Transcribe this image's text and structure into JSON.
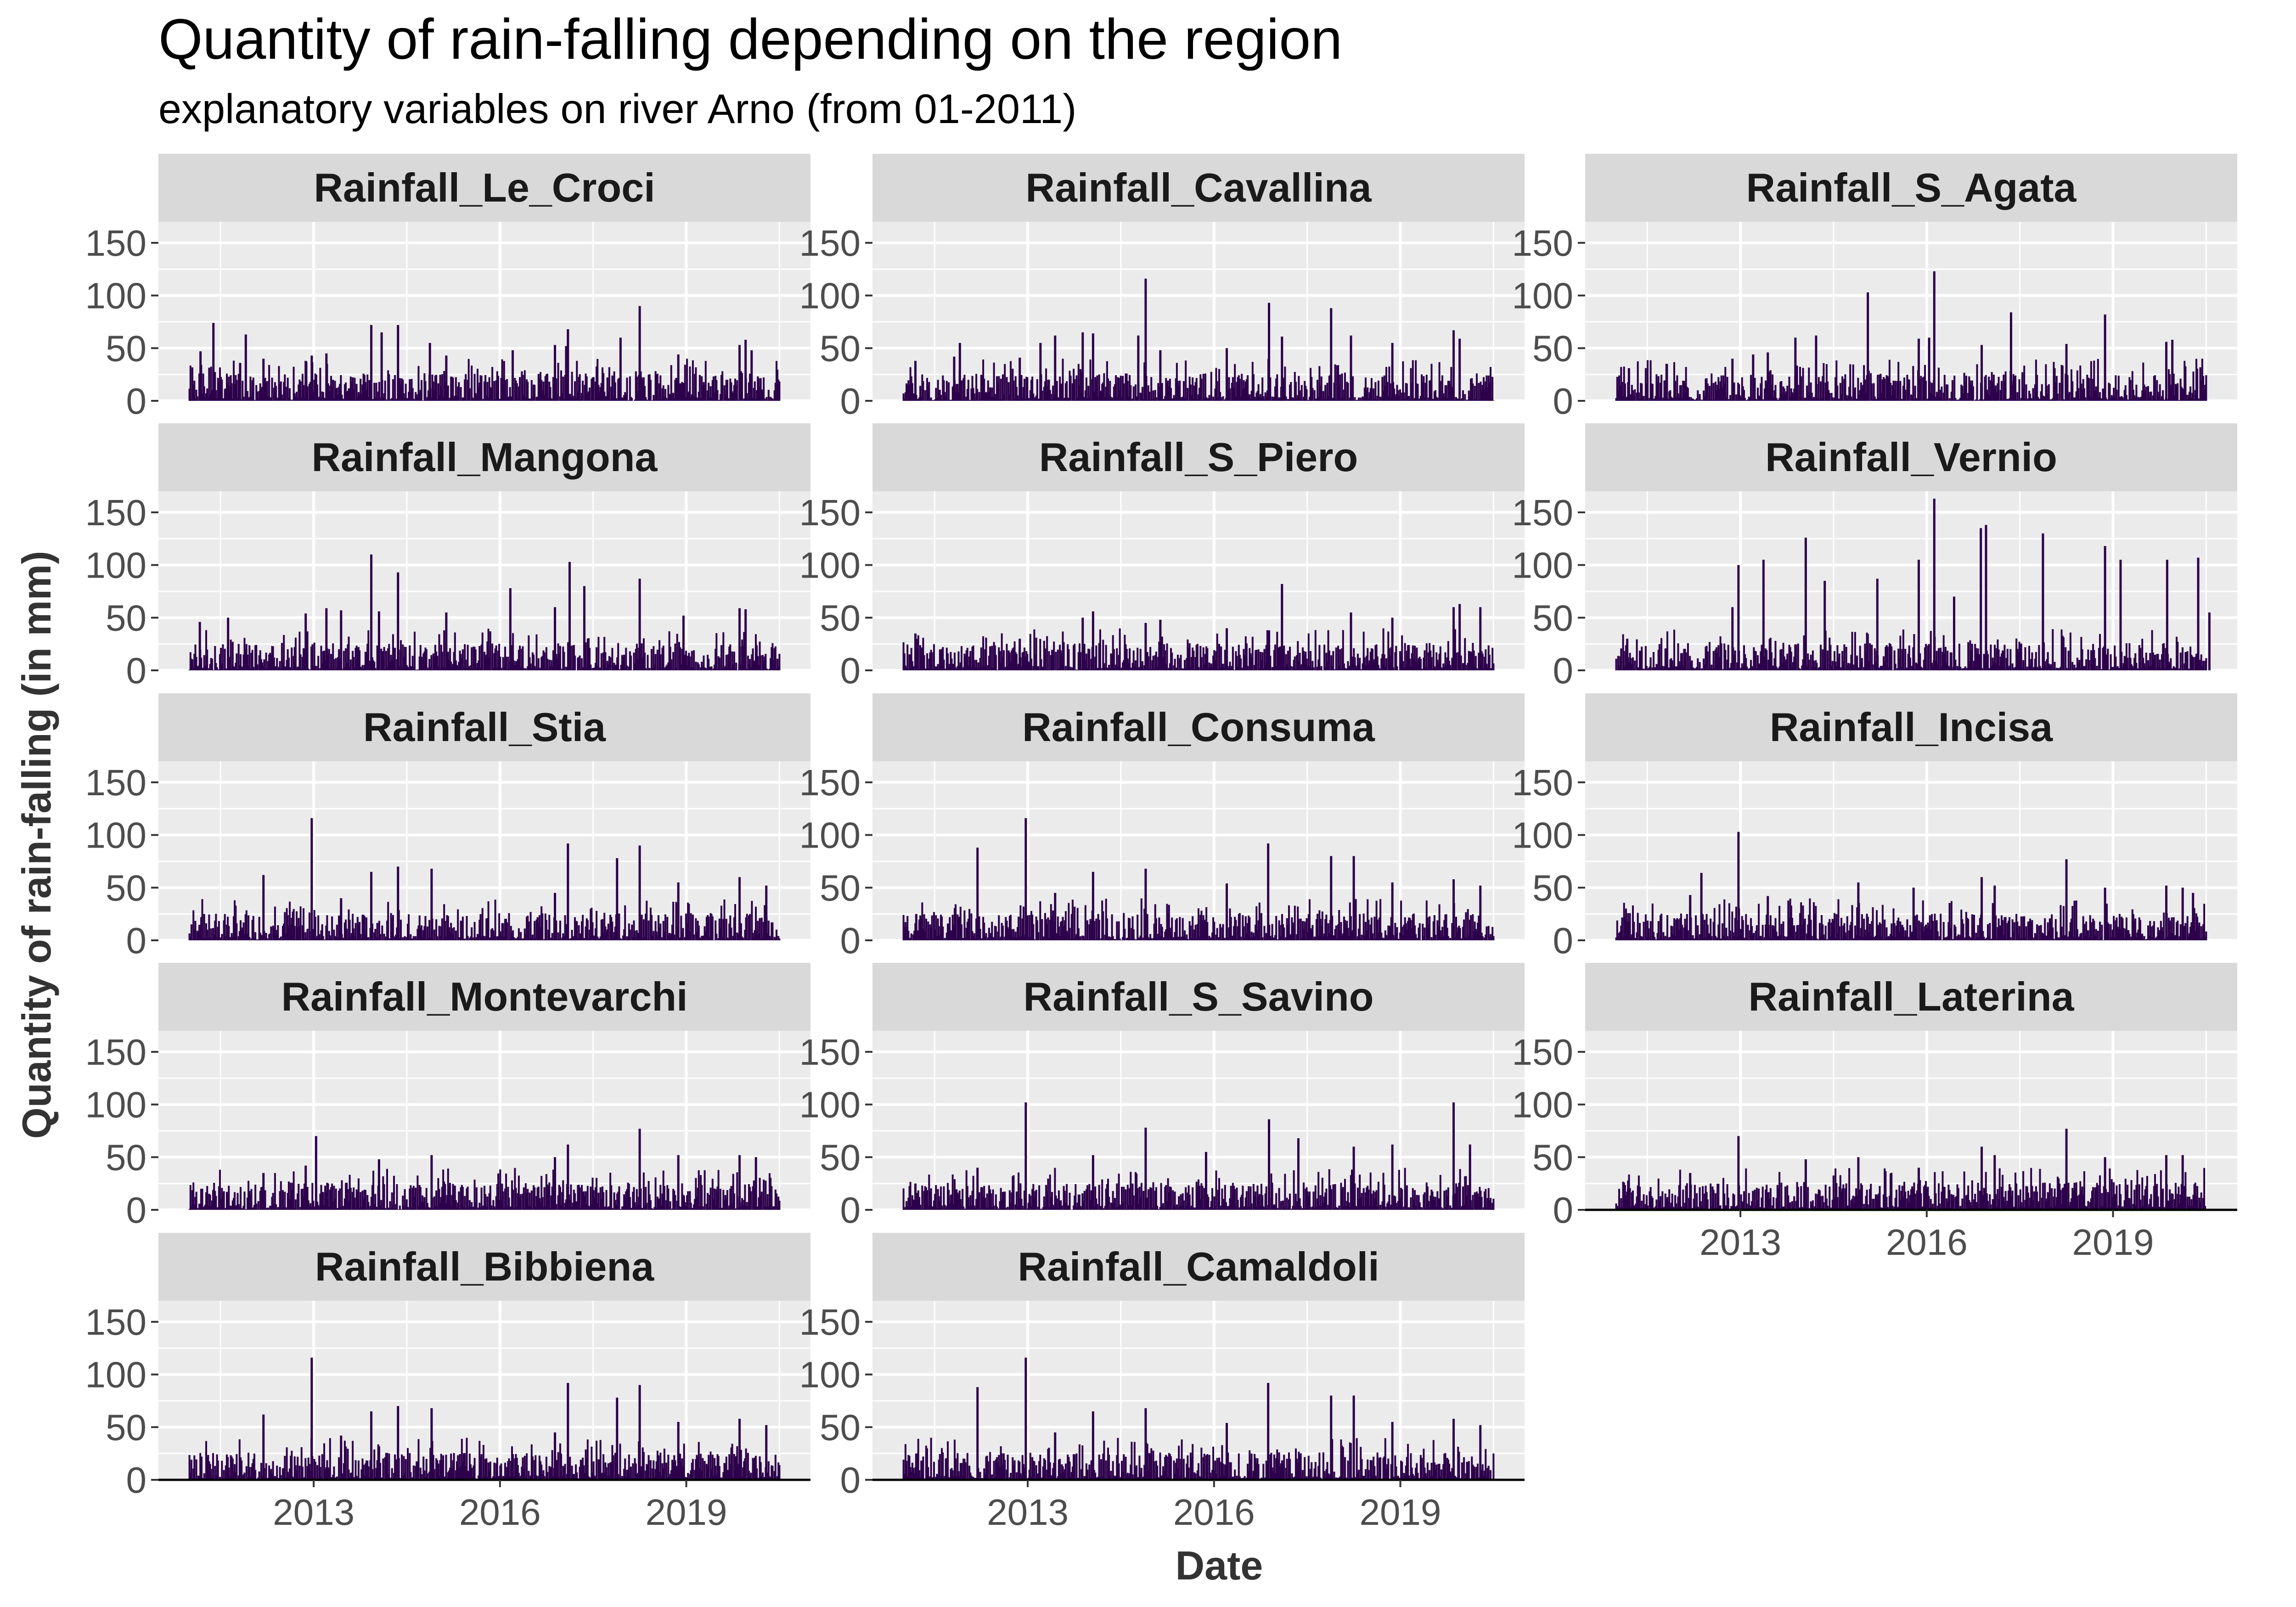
{
  "chart_data": {
    "type": "bar",
    "layout": "facet_wrap",
    "title": "Quantity of rain-falling depending on the region",
    "subtitle": "explanatory variables on river Arno (from 01-2011)",
    "xlabel": "Date",
    "ylabel": "Quantity of rain-falling (in mm)",
    "x_ticks": [
      "2013",
      "2016",
      "2019"
    ],
    "y_ticks": [
      0,
      50,
      100,
      150
    ],
    "xlim": [
      "2011-01-01",
      "2020-07-01"
    ],
    "ylim": [
      0,
      170
    ],
    "grid": true,
    "bar_color": "#2d004b",
    "panel_background": "#ebebeb",
    "strip_background": "#d9d9d9",
    "series": [
      {
        "name": "Rainfall_Le_Croci",
        "values": [
          {
            "x": "2011-03-05",
            "y": 47
          },
          {
            "x": "2011-05-20",
            "y": 74
          },
          {
            "x": "2011-10-25",
            "y": 36
          },
          {
            "x": "2011-11-28",
            "y": 63
          },
          {
            "x": "2012-03-10",
            "y": 40
          },
          {
            "x": "2012-11-15",
            "y": 38
          },
          {
            "x": "2012-12-20",
            "y": 43
          },
          {
            "x": "2013-03-15",
            "y": 45
          },
          {
            "x": "2013-12-05",
            "y": 72
          },
          {
            "x": "2014-02-05",
            "y": 65
          },
          {
            "x": "2014-05-10",
            "y": 72
          },
          {
            "x": "2014-11-15",
            "y": 55
          },
          {
            "x": "2015-02-20",
            "y": 43
          },
          {
            "x": "2016-03-15",
            "y": 48
          },
          {
            "x": "2016-11-20",
            "y": 53
          },
          {
            "x": "2017-01-25",
            "y": 52
          },
          {
            "x": "2017-02-05",
            "y": 68
          },
          {
            "x": "2017-12-10",
            "y": 60
          },
          {
            "x": "2018-04-01",
            "y": 90
          },
          {
            "x": "2018-11-15",
            "y": 44
          },
          {
            "x": "2019-11-10",
            "y": 53
          },
          {
            "x": "2019-12-15",
            "y": 58
          },
          {
            "x": "2020-01-20",
            "y": 48
          }
        ]
      },
      {
        "name": "Rainfall_Cavallina",
        "values": [
          {
            "x": "2011-03-10",
            "y": 38
          },
          {
            "x": "2011-10-25",
            "y": 42
          },
          {
            "x": "2011-11-28",
            "y": 55
          },
          {
            "x": "2012-11-15",
            "y": 41
          },
          {
            "x": "2013-03-15",
            "y": 55
          },
          {
            "x": "2013-06-10",
            "y": 62
          },
          {
            "x": "2013-11-20",
            "y": 65
          },
          {
            "x": "2014-01-20",
            "y": 64
          },
          {
            "x": "2014-10-12",
            "y": 62
          },
          {
            "x": "2014-11-25",
            "y": 116
          },
          {
            "x": "2015-02-20",
            "y": 48
          },
          {
            "x": "2016-03-15",
            "y": 50
          },
          {
            "x": "2016-11-20",
            "y": 93
          },
          {
            "x": "2017-02-05",
            "y": 61
          },
          {
            "x": "2017-11-20",
            "y": 88
          },
          {
            "x": "2018-03-15",
            "y": 62
          },
          {
            "x": "2018-11-15",
            "y": 55
          },
          {
            "x": "2019-11-10",
            "y": 67
          },
          {
            "x": "2019-12-15",
            "y": 59
          }
        ]
      },
      {
        "name": "Rainfall_S_Agata",
        "values": [
          {
            "x": "2011-03-15",
            "y": 31
          },
          {
            "x": "2011-10-25",
            "y": 35
          },
          {
            "x": "2012-11-15",
            "y": 40
          },
          {
            "x": "2013-03-15",
            "y": 44
          },
          {
            "x": "2013-06-10",
            "y": 46
          },
          {
            "x": "2013-11-20",
            "y": 60
          },
          {
            "x": "2014-03-20",
            "y": 62
          },
          {
            "x": "2015-01-20",
            "y": 103
          },
          {
            "x": "2015-11-15",
            "y": 59
          },
          {
            "x": "2016-01-15",
            "y": 60
          },
          {
            "x": "2016-02-15",
            "y": 123
          },
          {
            "x": "2016-11-20",
            "y": 53
          },
          {
            "x": "2017-05-10",
            "y": 84
          },
          {
            "x": "2018-04-01",
            "y": 54
          },
          {
            "x": "2018-11-15",
            "y": 82
          },
          {
            "x": "2019-11-10",
            "y": 56
          },
          {
            "x": "2019-12-15",
            "y": 58
          }
        ]
      },
      {
        "name": "Rainfall_Mangona",
        "values": [
          {
            "x": "2011-03-01",
            "y": 46
          },
          {
            "x": "2011-08-15",
            "y": 50
          },
          {
            "x": "2012-11-15",
            "y": 54
          },
          {
            "x": "2013-03-15",
            "y": 59
          },
          {
            "x": "2013-06-10",
            "y": 57
          },
          {
            "x": "2013-12-05",
            "y": 110
          },
          {
            "x": "2014-01-20",
            "y": 56
          },
          {
            "x": "2014-05-10",
            "y": 93
          },
          {
            "x": "2015-02-20",
            "y": 55
          },
          {
            "x": "2016-03-01",
            "y": 78
          },
          {
            "x": "2016-11-20",
            "y": 60
          },
          {
            "x": "2017-02-15",
            "y": 103
          },
          {
            "x": "2017-05-10",
            "y": 80
          },
          {
            "x": "2018-04-01",
            "y": 87
          },
          {
            "x": "2018-12-15",
            "y": 52
          },
          {
            "x": "2019-11-10",
            "y": 59
          },
          {
            "x": "2019-12-15",
            "y": 58
          }
        ]
      },
      {
        "name": "Rainfall_S_Piero",
        "values": [
          {
            "x": "2011-03-10",
            "y": 35
          },
          {
            "x": "2012-11-15",
            "y": 30
          },
          {
            "x": "2013-11-20",
            "y": 50
          },
          {
            "x": "2014-01-20",
            "y": 56
          },
          {
            "x": "2014-11-25",
            "y": 45
          },
          {
            "x": "2015-02-20",
            "y": 48
          },
          {
            "x": "2016-03-15",
            "y": 40
          },
          {
            "x": "2016-11-20",
            "y": 38
          },
          {
            "x": "2017-02-05",
            "y": 82
          },
          {
            "x": "2018-03-15",
            "y": 55
          },
          {
            "x": "2018-11-15",
            "y": 50
          },
          {
            "x": "2019-11-10",
            "y": 60
          },
          {
            "x": "2019-12-15",
            "y": 63
          },
          {
            "x": "2020-04-15",
            "y": 60
          }
        ]
      },
      {
        "name": "Rainfall_Vernio",
        "values": [
          {
            "x": "2011-03-05",
            "y": 30
          },
          {
            "x": "2012-11-15",
            "y": 60
          },
          {
            "x": "2012-12-20",
            "y": 100
          },
          {
            "x": "2013-05-15",
            "y": 105
          },
          {
            "x": "2014-01-20",
            "y": 126
          },
          {
            "x": "2014-05-10",
            "y": 85
          },
          {
            "x": "2015-03-15",
            "y": 87
          },
          {
            "x": "2015-11-15",
            "y": 105
          },
          {
            "x": "2016-02-15",
            "y": 163
          },
          {
            "x": "2016-06-10",
            "y": 70
          },
          {
            "x": "2016-11-15",
            "y": 135
          },
          {
            "x": "2016-12-15",
            "y": 138
          },
          {
            "x": "2017-11-15",
            "y": 130
          },
          {
            "x": "2018-11-15",
            "y": 118
          },
          {
            "x": "2019-02-15",
            "y": 105
          },
          {
            "x": "2019-11-15",
            "y": 105
          },
          {
            "x": "2020-05-15",
            "y": 107
          },
          {
            "x": "2020-07-20",
            "y": 55
          }
        ]
      },
      {
        "name": "Rainfall_Stia",
        "values": [
          {
            "x": "2011-03-10",
            "y": 22
          },
          {
            "x": "2012-03-10",
            "y": 62
          },
          {
            "x": "2012-12-20",
            "y": 116
          },
          {
            "x": "2013-06-10",
            "y": 40
          },
          {
            "x": "2013-12-05",
            "y": 65
          },
          {
            "x": "2014-05-10",
            "y": 70
          },
          {
            "x": "2014-11-25",
            "y": 68
          },
          {
            "x": "2016-11-20",
            "y": 45
          },
          {
            "x": "2017-02-05",
            "y": 92
          },
          {
            "x": "2017-11-20",
            "y": 78
          },
          {
            "x": "2018-04-01",
            "y": 90
          },
          {
            "x": "2018-11-15",
            "y": 55
          },
          {
            "x": "2019-11-10",
            "y": 60
          },
          {
            "x": "2020-04-15",
            "y": 52
          }
        ]
      },
      {
        "name": "Rainfall_Consuma",
        "values": [
          {
            "x": "2011-03-15",
            "y": 25
          },
          {
            "x": "2012-03-10",
            "y": 88
          },
          {
            "x": "2012-12-20",
            "y": 116
          },
          {
            "x": "2013-06-10",
            "y": 45
          },
          {
            "x": "2014-01-20",
            "y": 65
          },
          {
            "x": "2014-11-25",
            "y": 68
          },
          {
            "x": "2016-03-15",
            "y": 54
          },
          {
            "x": "2016-11-15",
            "y": 92
          },
          {
            "x": "2017-11-20",
            "y": 80
          },
          {
            "x": "2018-04-01",
            "y": 80
          },
          {
            "x": "2018-11-15",
            "y": 55
          },
          {
            "x": "2019-11-10",
            "y": 58
          },
          {
            "x": "2020-04-15",
            "y": 52
          }
        ]
      },
      {
        "name": "Rainfall_Incisa",
        "values": [
          {
            "x": "2011-03-10",
            "y": 18
          },
          {
            "x": "2012-03-10",
            "y": 43
          },
          {
            "x": "2012-05-15",
            "y": 64
          },
          {
            "x": "2012-12-20",
            "y": 103
          },
          {
            "x": "2013-06-10",
            "y": 42
          },
          {
            "x": "2014-11-25",
            "y": 55
          },
          {
            "x": "2015-10-15",
            "y": 50
          },
          {
            "x": "2016-11-20",
            "y": 60
          },
          {
            "x": "2017-02-05",
            "y": 52
          },
          {
            "x": "2018-04-01",
            "y": 77
          },
          {
            "x": "2018-11-15",
            "y": 50
          },
          {
            "x": "2019-11-10",
            "y": 52
          },
          {
            "x": "2020-02-15",
            "y": 50
          },
          {
            "x": "2020-04-15",
            "y": 45
          }
        ]
      },
      {
        "name": "Rainfall_Montevarchi",
        "values": [
          {
            "x": "2011-03-10",
            "y": 20
          },
          {
            "x": "2012-03-10",
            "y": 35
          },
          {
            "x": "2012-11-15",
            "y": 42
          },
          {
            "x": "2013-01-15",
            "y": 70
          },
          {
            "x": "2014-01-20",
            "y": 48
          },
          {
            "x": "2014-11-25",
            "y": 52
          },
          {
            "x": "2016-11-20",
            "y": 50
          },
          {
            "x": "2017-02-05",
            "y": 62
          },
          {
            "x": "2018-04-01",
            "y": 77
          },
          {
            "x": "2018-11-15",
            "y": 52
          },
          {
            "x": "2019-11-10",
            "y": 52
          },
          {
            "x": "2020-02-15",
            "y": 50
          }
        ]
      },
      {
        "name": "Rainfall_S_Savino",
        "values": [
          {
            "x": "2011-03-10",
            "y": 25
          },
          {
            "x": "2012-03-10",
            "y": 40
          },
          {
            "x": "2012-12-20",
            "y": 102
          },
          {
            "x": "2014-01-20",
            "y": 52
          },
          {
            "x": "2014-11-25",
            "y": 78
          },
          {
            "x": "2015-11-15",
            "y": 55
          },
          {
            "x": "2016-11-20",
            "y": 86
          },
          {
            "x": "2017-05-10",
            "y": 68
          },
          {
            "x": "2018-04-01",
            "y": 60
          },
          {
            "x": "2018-11-15",
            "y": 62
          },
          {
            "x": "2019-11-10",
            "y": 102
          },
          {
            "x": "2020-02-15",
            "y": 62
          }
        ]
      },
      {
        "name": "Rainfall_Laterina",
        "values": [
          {
            "x": "2011-03-10",
            "y": 20
          },
          {
            "x": "2012-03-10",
            "y": 35
          },
          {
            "x": "2012-12-20",
            "y": 70
          },
          {
            "x": "2014-01-20",
            "y": 48
          },
          {
            "x": "2014-11-25",
            "y": 50
          },
          {
            "x": "2015-11-15",
            "y": 40
          },
          {
            "x": "2016-11-20",
            "y": 60
          },
          {
            "x": "2017-02-05",
            "y": 52
          },
          {
            "x": "2018-04-01",
            "y": 77
          },
          {
            "x": "2018-11-15",
            "y": 50
          },
          {
            "x": "2019-11-10",
            "y": 52
          },
          {
            "x": "2020-02-15",
            "y": 52
          }
        ]
      },
      {
        "name": "Rainfall_Bibbiena",
        "values": [
          {
            "x": "2011-03-10",
            "y": 22
          },
          {
            "x": "2012-03-10",
            "y": 62
          },
          {
            "x": "2012-12-20",
            "y": 116
          },
          {
            "x": "2013-06-10",
            "y": 42
          },
          {
            "x": "2013-12-05",
            "y": 65
          },
          {
            "x": "2014-05-10",
            "y": 70
          },
          {
            "x": "2014-11-25",
            "y": 68
          },
          {
            "x": "2016-11-20",
            "y": 45
          },
          {
            "x": "2017-02-05",
            "y": 92
          },
          {
            "x": "2017-11-20",
            "y": 78
          },
          {
            "x": "2018-04-01",
            "y": 90
          },
          {
            "x": "2018-11-15",
            "y": 55
          },
          {
            "x": "2019-11-10",
            "y": 58
          },
          {
            "x": "2020-04-15",
            "y": 52
          }
        ]
      },
      {
        "name": "Rainfall_Camaldoli",
        "values": [
          {
            "x": "2011-03-15",
            "y": 25
          },
          {
            "x": "2012-03-10",
            "y": 88
          },
          {
            "x": "2012-12-20",
            "y": 116
          },
          {
            "x": "2013-06-10",
            "y": 45
          },
          {
            "x": "2014-01-20",
            "y": 65
          },
          {
            "x": "2014-11-25",
            "y": 68
          },
          {
            "x": "2016-03-15",
            "y": 54
          },
          {
            "x": "2016-11-15",
            "y": 92
          },
          {
            "x": "2017-11-20",
            "y": 80
          },
          {
            "x": "2018-04-01",
            "y": 80
          },
          {
            "x": "2018-11-15",
            "y": 55
          },
          {
            "x": "2019-11-10",
            "y": 58
          },
          {
            "x": "2020-04-15",
            "y": 52
          }
        ]
      }
    ]
  }
}
